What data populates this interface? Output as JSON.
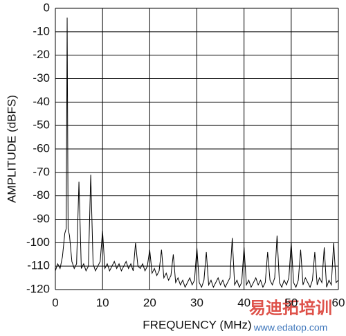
{
  "chart_data": {
    "type": "line",
    "xlabel": "FREQUENCY (MHz)",
    "ylabel": "AMPLITUDE (dBFS)",
    "xlim": [
      0,
      60
    ],
    "ylim": [
      -120,
      0
    ],
    "xticks": [
      0,
      10,
      20,
      30,
      40,
      50,
      60
    ],
    "yticks": [
      0,
      -10,
      -20,
      -30,
      -40,
      -50,
      -60,
      -70,
      -80,
      -90,
      -100,
      -110,
      -120
    ],
    "grid": true,
    "series": [
      {
        "color": "#000000",
        "x": [
          0,
          0.5,
          1,
          1.5,
          2,
          2.3,
          2.5,
          2.7,
          3,
          3.5,
          4,
          4.5,
          5,
          5.5,
          6,
          6.5,
          7,
          7.5,
          8,
          8.5,
          9,
          9.5,
          10,
          10.5,
          11,
          11.5,
          12,
          12.5,
          13,
          13.5,
          14,
          14.5,
          15,
          15.5,
          16,
          16.5,
          17,
          17.5,
          18,
          18.5,
          19,
          19.5,
          20,
          20.5,
          21,
          21.5,
          22,
          22.5,
          23,
          23.5,
          24,
          24.5,
          25,
          25.5,
          26,
          26.5,
          27,
          27.5,
          28,
          28.5,
          29,
          29.5,
          30,
          30.5,
          31,
          31.5,
          32,
          32.5,
          33,
          33.5,
          34,
          34.5,
          35,
          35.5,
          36,
          36.5,
          37,
          37.5,
          38,
          38.5,
          39,
          39.5,
          40,
          40.5,
          41,
          41.5,
          42,
          42.5,
          43,
          43.5,
          44,
          44.5,
          45,
          45.5,
          46,
          46.5,
          47,
          47.5,
          48,
          48.5,
          49,
          49.5,
          50,
          50.5,
          51,
          51.5,
          52,
          52.5,
          53,
          53.5,
          54,
          54.5,
          55,
          55.5,
          56,
          56.5,
          57,
          57.5,
          58,
          58.5,
          59,
          59.5,
          60
        ],
        "values": [
          -112,
          -109,
          -111,
          -106,
          -96,
          -94,
          -4,
          -94,
          -97,
          -108,
          -111,
          -109,
          -74,
          -111,
          -109,
          -112,
          -110,
          -71,
          -109,
          -112,
          -110,
          -108,
          -95,
          -111,
          -109,
          -112,
          -110,
          -108,
          -111,
          -109,
          -112,
          -110,
          -108,
          -111,
          -109,
          -112,
          -100,
          -110,
          -111,
          -109,
          -112,
          -110,
          -103,
          -113,
          -111,
          -114,
          -112,
          -103,
          -115,
          -113,
          -116,
          -114,
          -105,
          -117,
          -115,
          -118,
          -116,
          -119,
          -117,
          -115,
          -118,
          -116,
          -102,
          -117,
          -119,
          -116,
          -104,
          -118,
          -116,
          -119,
          -117,
          -115,
          -118,
          -116,
          -119,
          -117,
          -115,
          -98,
          -118,
          -116,
          -119,
          -117,
          -102,
          -118,
          -116,
          -119,
          -117,
          -115,
          -118,
          -116,
          -119,
          -117,
          -104,
          -116,
          -118,
          -115,
          -97,
          -117,
          -119,
          -116,
          -118,
          -115,
          -100,
          -117,
          -119,
          -116,
          -103,
          -118,
          -115,
          -117,
          -119,
          -116,
          -104,
          -118,
          -115,
          -117,
          -102,
          -119,
          -116,
          -118,
          -100,
          -117,
          -116
        ]
      }
    ]
  },
  "watermark": {
    "title": "易迪拓培训",
    "url": "www.edatop.com"
  }
}
